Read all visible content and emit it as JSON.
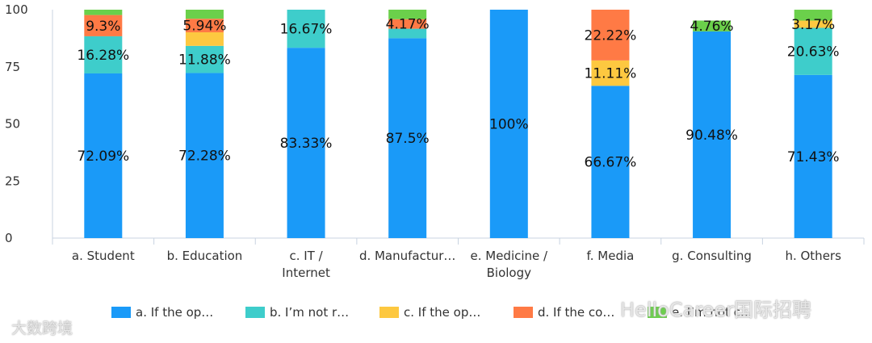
{
  "chart_data": {
    "type": "bar",
    "stacked": true,
    "categories": [
      "a. Student",
      "b. Education",
      "c. IT / Internet",
      "d. Manufactur…",
      "e. Medicine / Biology",
      "f. Media",
      "g. Consulting",
      "h. Others"
    ],
    "series": [
      {
        "name": "a. If the op…",
        "color": "#1a9af8",
        "values": [
          72.09,
          72.28,
          83.33,
          87.5,
          100,
          66.67,
          90.48,
          71.43
        ]
      },
      {
        "name": "b. I’m not r…",
        "color": "#3ecdcb",
        "values": [
          16.28,
          11.88,
          16.67,
          4.17,
          0,
          0,
          0,
          20.63
        ]
      },
      {
        "name": "c. If the op…",
        "color": "#fdc840",
        "values": [
          0,
          5.94,
          0,
          0,
          0,
          11.11,
          0,
          3.17
        ]
      },
      {
        "name": "d. If the co…",
        "color": "#ff7a45",
        "values": [
          9.3,
          5.94,
          0,
          4.17,
          0,
          22.22,
          0,
          0
        ]
      },
      {
        "name": "e. I’m not c…",
        "color": "#6bd04b",
        "values": [
          2.33,
          3.96,
          0,
          4.17,
          0,
          0,
          4.76,
          4.76
        ]
      }
    ],
    "data_labels": [
      [
        {
          "series": 0,
          "text": "72.09%"
        },
        {
          "series": 1,
          "text": "16.28%"
        },
        {
          "series": 3,
          "text": "9.3%"
        }
      ],
      [
        {
          "series": 0,
          "text": "72.28%"
        },
        {
          "series": 1,
          "text": "11.88%"
        },
        {
          "series": 3,
          "text": "5.94%"
        }
      ],
      [
        {
          "series": 0,
          "text": "83.33%"
        },
        {
          "series": 1,
          "text": "16.67%"
        }
      ],
      [
        {
          "series": 0,
          "text": "87.5%"
        },
        {
          "series": 3,
          "text": "4.17%"
        }
      ],
      [
        {
          "series": 0,
          "text": "100%"
        }
      ],
      [
        {
          "series": 0,
          "text": "66.67%"
        },
        {
          "series": 2,
          "text": "11.11%"
        },
        {
          "series": 3,
          "text": "22.22%"
        }
      ],
      [
        {
          "series": 0,
          "text": "90.48%"
        },
        {
          "series": 4,
          "text": "4.76%"
        }
      ],
      [
        {
          "series": 0,
          "text": "71.43%"
        },
        {
          "series": 1,
          "text": "20.63%"
        },
        {
          "series": 2,
          "text": "3.17%"
        }
      ]
    ],
    "yticks": [
      0,
      25,
      50,
      75,
      100
    ],
    "ylim": [
      0,
      100
    ],
    "legend_position": "bottom",
    "title": "",
    "xlabel": "",
    "ylabel": ""
  },
  "watermarks": {
    "left": "大数跨境",
    "right": "HelloCareer国际招聘"
  }
}
